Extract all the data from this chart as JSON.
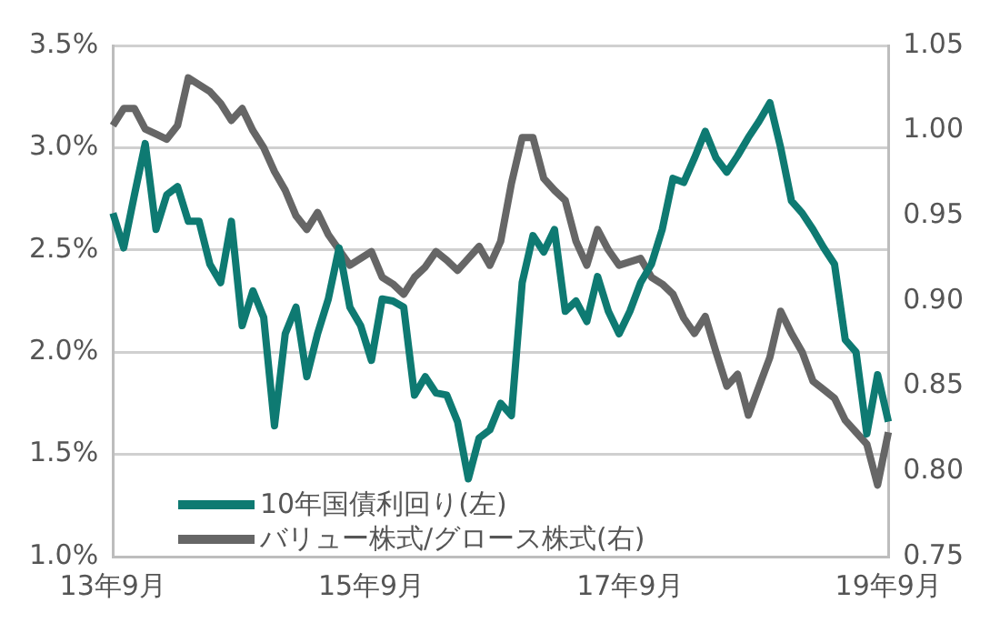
{
  "chart_data": {
    "type": "line",
    "legend": "bottom left",
    "grid": "y",
    "marker": "none",
    "line_style": "solid",
    "categories": [
      "13年9月",
      null,
      null,
      null,
      null,
      null,
      null,
      null,
      null,
      null,
      null,
      null,
      null,
      null,
      null,
      null,
      null,
      null,
      null,
      null,
      null,
      null,
      null,
      null,
      "15年9月",
      null,
      null,
      null,
      null,
      null,
      null,
      null,
      null,
      null,
      null,
      null,
      null,
      null,
      null,
      null,
      null,
      null,
      null,
      null,
      null,
      null,
      null,
      null,
      "17年9月",
      null,
      null,
      null,
      null,
      null,
      null,
      null,
      null,
      null,
      null,
      null,
      null,
      null,
      null,
      null,
      null,
      null,
      null,
      null,
      null,
      null,
      null,
      null,
      "19年9月"
    ],
    "ylim": [
      1.0,
      3.5
    ],
    "yticks": [
      {
        "value": 1.0,
        "label": "1.0%"
      },
      {
        "value": 1.5,
        "label": "1.5%"
      },
      {
        "value": 2.0,
        "label": "2.0%"
      },
      {
        "value": 2.5,
        "label": "2.5%"
      },
      {
        "value": 3.0,
        "label": "3.0%"
      },
      {
        "value": 3.5,
        "label": "3.5%"
      }
    ],
    "y2lim": [
      0.75,
      1.05
    ],
    "y2ticks": [
      {
        "value": 0.75,
        "label": "0.75"
      },
      {
        "value": 0.8,
        "label": "0.80"
      },
      {
        "value": 0.85,
        "label": "0.85"
      },
      {
        "value": 0.9,
        "label": "0.90"
      },
      {
        "value": 0.95,
        "label": "0.95"
      },
      {
        "value": 1.0,
        "label": "1.00"
      },
      {
        "value": 1.05,
        "label": "1.05"
      }
    ],
    "series": [
      {
        "name": "10年国債利回り(左)",
        "color": "#0e7a72",
        "values": [
          2.68,
          2.51,
          2.77,
          3.02,
          2.6,
          2.77,
          2.81,
          2.64,
          2.64,
          2.43,
          2.34,
          2.64,
          2.13,
          2.3,
          2.17,
          1.64,
          2.09,
          2.22,
          1.88,
          2.09,
          2.26,
          2.51,
          2.22,
          2.13,
          1.96,
          2.26,
          2.25,
          2.22,
          1.79,
          1.88,
          1.8,
          1.79,
          1.66,
          1.38,
          1.58,
          1.62,
          1.75,
          1.69,
          2.34,
          2.57,
          2.49,
          2.6,
          2.2,
          2.25,
          2.15,
          2.37,
          2.2,
          2.09,
          2.2,
          2.34,
          2.43,
          2.6,
          2.85,
          2.83,
          2.95,
          3.08,
          2.95,
          2.88,
          2.96,
          3.05,
          3.13,
          3.22,
          3.0,
          2.74,
          2.68,
          2.6,
          2.51,
          2.43,
          2.06,
          2.0,
          1.6,
          1.89,
          1.66
        ]
      },
      {
        "name": "バリュー株式/グロース株式(右)",
        "color": "#666666",
        "axis": "y2",
        "values": [
          1.003,
          1.013,
          1.013,
          1.001,
          0.998,
          0.995,
          1.003,
          1.031,
          1.027,
          1.023,
          1.016,
          1.006,
          1.013,
          1.0,
          0.99,
          0.976,
          0.965,
          0.95,
          0.942,
          0.952,
          0.939,
          0.93,
          0.921,
          0.925,
          0.929,
          0.914,
          0.91,
          0.904,
          0.914,
          0.92,
          0.929,
          0.924,
          0.918,
          0.925,
          0.932,
          0.921,
          0.935,
          0.969,
          0.996,
          0.996,
          0.972,
          0.965,
          0.959,
          0.935,
          0.921,
          0.942,
          0.93,
          0.921,
          0.923,
          0.925,
          0.914,
          0.91,
          0.904,
          0.89,
          0.881,
          0.891,
          0.87,
          0.85,
          0.857,
          0.833,
          0.85,
          0.867,
          0.894,
          0.881,
          0.87,
          0.853,
          0.848,
          0.843,
          0.83,
          0.823,
          0.816,
          0.792,
          0.823
        ]
      }
    ]
  }
}
